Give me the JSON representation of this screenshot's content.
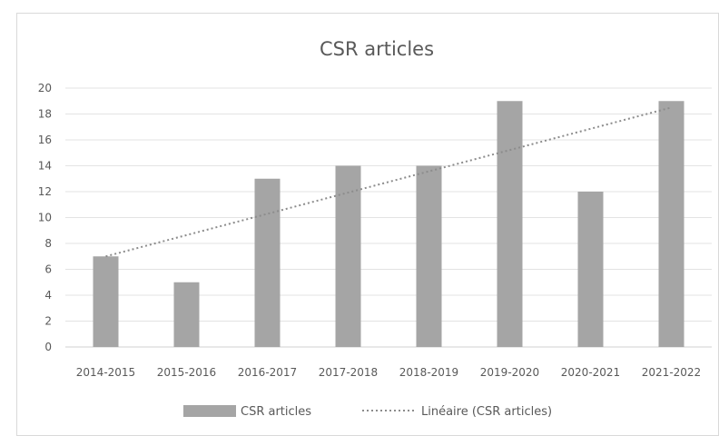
{
  "chart_data": {
    "type": "bar",
    "title": "CSR articles",
    "xlabel": "",
    "ylabel": "",
    "categories": [
      "2014-2015",
      "2015-2016",
      "2016-2017",
      "2017-2018",
      "2018-2019",
      "2019-2020",
      "2020-2021",
      "2021-2022"
    ],
    "series": [
      {
        "name": "CSR articles",
        "values": [
          7,
          5,
          13,
          14,
          14,
          19,
          12,
          19
        ],
        "color": "#a5a5a5"
      }
    ],
    "trendline": {
      "name": "Linéaire (CSR articles)",
      "type": "linear",
      "start_value": 7.0,
      "end_value": 18.5,
      "color": "#a5a5a5",
      "style": "dotted"
    },
    "ylim": [
      0,
      20
    ],
    "yticks": [
      0,
      2,
      4,
      6,
      8,
      10,
      12,
      14,
      16,
      18,
      20
    ],
    "grid": true,
    "legend_position": "bottom"
  }
}
